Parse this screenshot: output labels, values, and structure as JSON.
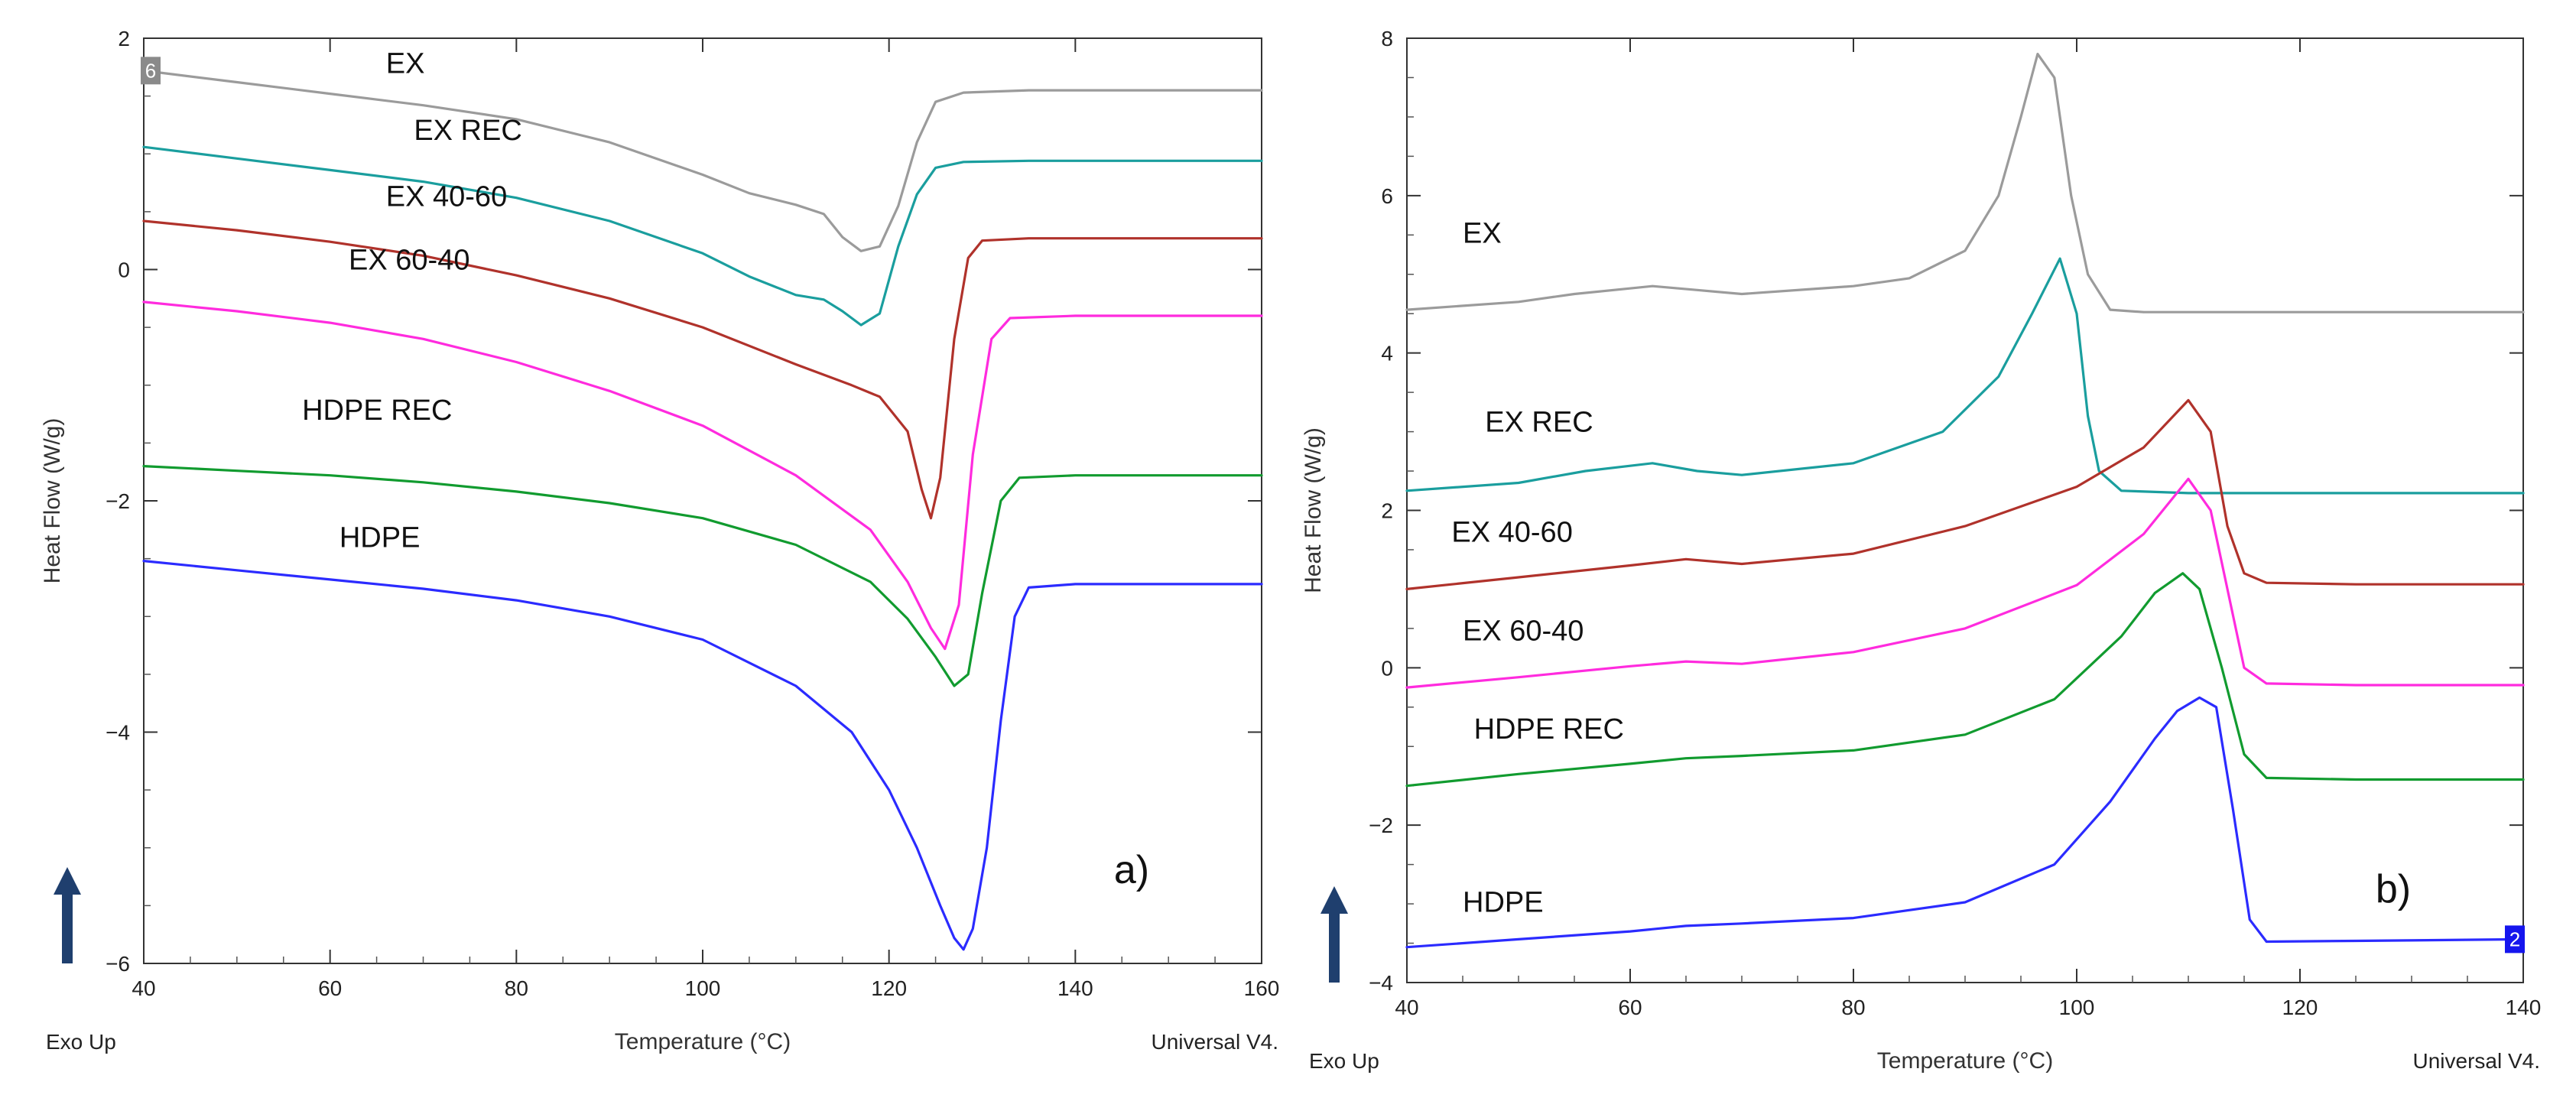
{
  "chart_data": [
    {
      "type": "line",
      "panel_label": "a)",
      "xlabel": "Temperature (°C)",
      "ylabel": "Heat Flow (W/g)",
      "xlim": [
        40,
        160
      ],
      "ylim": [
        -6,
        2
      ],
      "xticks": [
        40,
        60,
        80,
        100,
        120,
        140,
        160
      ],
      "yticks": [
        -6,
        -4,
        -2,
        0,
        2
      ],
      "corner_left": "Exo Up",
      "corner_right": "Universal V4.",
      "badge": {
        "text": "6",
        "color": "#8a8a8a",
        "x": 40,
        "y": 1.72
      },
      "grid": false,
      "series": [
        {
          "name": "EX",
          "color": "#9b9b9b",
          "label_at": [
            66,
            1.7
          ],
          "points": [
            [
              40,
              1.72
            ],
            [
              50,
              1.62
            ],
            [
              60,
              1.52
            ],
            [
              70,
              1.42
            ],
            [
              80,
              1.3
            ],
            [
              90,
              1.1
            ],
            [
              100,
              0.82
            ],
            [
              105,
              0.66
            ],
            [
              110,
              0.56
            ],
            [
              113,
              0.48
            ],
            [
              115,
              0.28
            ],
            [
              117,
              0.16
            ],
            [
              119,
              0.2
            ],
            [
              121,
              0.55
            ],
            [
              123,
              1.1
            ],
            [
              125,
              1.45
            ],
            [
              128,
              1.53
            ],
            [
              135,
              1.55
            ],
            [
              160,
              1.55
            ]
          ]
        },
        {
          "name": "EX REC",
          "color": "#1a9e9e",
          "label_at": [
            69,
            1.12
          ],
          "points": [
            [
              40,
              1.06
            ],
            [
              50,
              0.96
            ],
            [
              60,
              0.86
            ],
            [
              70,
              0.76
            ],
            [
              80,
              0.62
            ],
            [
              90,
              0.42
            ],
            [
              100,
              0.14
            ],
            [
              105,
              -0.06
            ],
            [
              110,
              -0.22
            ],
            [
              113,
              -0.26
            ],
            [
              115,
              -0.36
            ],
            [
              117,
              -0.48
            ],
            [
              119,
              -0.38
            ],
            [
              121,
              0.2
            ],
            [
              123,
              0.65
            ],
            [
              125,
              0.88
            ],
            [
              128,
              0.93
            ],
            [
              135,
              0.94
            ],
            [
              160,
              0.94
            ]
          ]
        },
        {
          "name": "EX 40-60",
          "color": "#b0322b",
          "label_at": [
            66,
            0.55
          ],
          "points": [
            [
              40,
              0.42
            ],
            [
              50,
              0.34
            ],
            [
              60,
              0.24
            ],
            [
              70,
              0.12
            ],
            [
              80,
              -0.05
            ],
            [
              90,
              -0.25
            ],
            [
              100,
              -0.5
            ],
            [
              110,
              -0.82
            ],
            [
              116,
              -1.0
            ],
            [
              119,
              -1.1
            ],
            [
              122,
              -1.4
            ],
            [
              123.5,
              -1.9
            ],
            [
              124.5,
              -2.15
            ],
            [
              125.5,
              -1.8
            ],
            [
              127,
              -0.6
            ],
            [
              128.5,
              0.1
            ],
            [
              130,
              0.25
            ],
            [
              135,
              0.27
            ],
            [
              160,
              0.27
            ]
          ]
        },
        {
          "name": "EX 60-40",
          "color": "#ff2bde",
          "label_at": [
            62,
            0.0
          ],
          "points": [
            [
              40,
              -0.28
            ],
            [
              50,
              -0.36
            ],
            [
              60,
              -0.46
            ],
            [
              70,
              -0.6
            ],
            [
              80,
              -0.8
            ],
            [
              90,
              -1.05
            ],
            [
              100,
              -1.35
            ],
            [
              110,
              -1.78
            ],
            [
              118,
              -2.25
            ],
            [
              122,
              -2.7
            ],
            [
              124.5,
              -3.1
            ],
            [
              126,
              -3.28
            ],
            [
              127.5,
              -2.9
            ],
            [
              129,
              -1.6
            ],
            [
              131,
              -0.6
            ],
            [
              133,
              -0.42
            ],
            [
              140,
              -0.4
            ],
            [
              160,
              -0.4
            ]
          ]
        },
        {
          "name": "HDPE REC",
          "color": "#119b2f",
          "label_at": [
            57,
            -1.3
          ],
          "points": [
            [
              40,
              -1.7
            ],
            [
              50,
              -1.74
            ],
            [
              60,
              -1.78
            ],
            [
              70,
              -1.84
            ],
            [
              80,
              -1.92
            ],
            [
              90,
              -2.02
            ],
            [
              100,
              -2.15
            ],
            [
              110,
              -2.38
            ],
            [
              118,
              -2.7
            ],
            [
              122,
              -3.02
            ],
            [
              125,
              -3.35
            ],
            [
              127,
              -3.6
            ],
            [
              128.5,
              -3.5
            ],
            [
              130,
              -2.8
            ],
            [
              132,
              -2.0
            ],
            [
              134,
              -1.8
            ],
            [
              140,
              -1.78
            ],
            [
              160,
              -1.78
            ]
          ]
        },
        {
          "name": "HDPE",
          "color": "#2b2bff",
          "label_at": [
            61,
            -2.4
          ],
          "points": [
            [
              40,
              -2.52
            ],
            [
              50,
              -2.6
            ],
            [
              60,
              -2.68
            ],
            [
              70,
              -2.76
            ],
            [
              80,
              -2.86
            ],
            [
              90,
              -3.0
            ],
            [
              100,
              -3.2
            ],
            [
              110,
              -3.6
            ],
            [
              116,
              -4.0
            ],
            [
              120,
              -4.5
            ],
            [
              123,
              -5.0
            ],
            [
              125.5,
              -5.5
            ],
            [
              127,
              -5.78
            ],
            [
              128,
              -5.88
            ],
            [
              129,
              -5.7
            ],
            [
              130.5,
              -5.0
            ],
            [
              132,
              -3.9
            ],
            [
              133.5,
              -3.0
            ],
            [
              135,
              -2.75
            ],
            [
              140,
              -2.72
            ],
            [
              160,
              -2.72
            ]
          ]
        }
      ]
    },
    {
      "type": "line",
      "panel_label": "b)",
      "xlabel": "Temperature (°C)",
      "ylabel": "Heat Flow (W/g)",
      "xlim": [
        40,
        140
      ],
      "ylim": [
        -4,
        8
      ],
      "xticks": [
        40,
        60,
        80,
        100,
        120,
        140
      ],
      "yticks": [
        -4,
        -2,
        0,
        2,
        4,
        6,
        8
      ],
      "corner_left": "Exo Up",
      "corner_right": "Universal V4.",
      "badge": {
        "text": "2",
        "color": "#1515ee",
        "x": 140,
        "y": -3.45
      },
      "grid": false,
      "series": [
        {
          "name": "EX",
          "color": "#9b9b9b",
          "label_at": [
            45,
            5.4
          ],
          "points": [
            [
              40,
              4.55
            ],
            [
              50,
              4.65
            ],
            [
              55,
              4.75
            ],
            [
              62,
              4.85
            ],
            [
              66,
              4.8
            ],
            [
              70,
              4.75
            ],
            [
              80,
              4.85
            ],
            [
              85,
              4.95
            ],
            [
              90,
              5.3
            ],
            [
              93,
              6.0
            ],
            [
              95,
              7.0
            ],
            [
              96.5,
              7.8
            ],
            [
              98,
              7.5
            ],
            [
              99.5,
              6.0
            ],
            [
              101,
              5.0
            ],
            [
              103,
              4.55
            ],
            [
              106,
              4.52
            ],
            [
              140,
              4.52
            ]
          ]
        },
        {
          "name": "EX REC",
          "color": "#1a9e9e",
          "label_at": [
            47,
            3.0
          ],
          "points": [
            [
              40,
              2.25
            ],
            [
              50,
              2.35
            ],
            [
              56,
              2.5
            ],
            [
              62,
              2.6
            ],
            [
              66,
              2.5
            ],
            [
              70,
              2.45
            ],
            [
              80,
              2.6
            ],
            [
              88,
              3.0
            ],
            [
              93,
              3.7
            ],
            [
              96,
              4.5
            ],
            [
              98.5,
              5.2
            ],
            [
              100,
              4.5
            ],
            [
              101,
              3.2
            ],
            [
              102,
              2.5
            ],
            [
              104,
              2.25
            ],
            [
              110,
              2.22
            ],
            [
              140,
              2.22
            ]
          ]
        },
        {
          "name": "EX 40-60",
          "color": "#b0322b",
          "label_at": [
            44,
            1.6
          ],
          "points": [
            [
              40,
              1.0
            ],
            [
              50,
              1.15
            ],
            [
              60,
              1.3
            ],
            [
              65,
              1.38
            ],
            [
              70,
              1.32
            ],
            [
              80,
              1.45
            ],
            [
              90,
              1.8
            ],
            [
              100,
              2.3
            ],
            [
              106,
              2.8
            ],
            [
              110,
              3.4
            ],
            [
              112,
              3.0
            ],
            [
              113.5,
              1.8
            ],
            [
              115,
              1.2
            ],
            [
              117,
              1.08
            ],
            [
              125,
              1.06
            ],
            [
              140,
              1.06
            ]
          ]
        },
        {
          "name": "EX 60-40",
          "color": "#ff2bde",
          "label_at": [
            45,
            0.35
          ],
          "points": [
            [
              40,
              -0.25
            ],
            [
              50,
              -0.12
            ],
            [
              60,
              0.02
            ],
            [
              65,
              0.08
            ],
            [
              70,
              0.05
            ],
            [
              80,
              0.2
            ],
            [
              90,
              0.5
            ],
            [
              100,
              1.05
            ],
            [
              106,
              1.7
            ],
            [
              110,
              2.4
            ],
            [
              112,
              2.0
            ],
            [
              113.5,
              1.0
            ],
            [
              115,
              0.0
            ],
            [
              117,
              -0.2
            ],
            [
              125,
              -0.22
            ],
            [
              140,
              -0.22
            ]
          ]
        },
        {
          "name": "HDPE REC",
          "color": "#119b2f",
          "label_at": [
            46,
            -0.9
          ],
          "points": [
            [
              40,
              -1.5
            ],
            [
              50,
              -1.35
            ],
            [
              60,
              -1.22
            ],
            [
              65,
              -1.15
            ],
            [
              70,
              -1.12
            ],
            [
              80,
              -1.05
            ],
            [
              90,
              -0.85
            ],
            [
              98,
              -0.4
            ],
            [
              104,
              0.4
            ],
            [
              107,
              0.95
            ],
            [
              109.5,
              1.2
            ],
            [
              111,
              1.0
            ],
            [
              113,
              0.0
            ],
            [
              115,
              -1.1
            ],
            [
              117,
              -1.4
            ],
            [
              125,
              -1.42
            ],
            [
              140,
              -1.42
            ]
          ]
        },
        {
          "name": "HDPE",
          "color": "#2b2bff",
          "label_at": [
            45,
            -3.1
          ],
          "points": [
            [
              40,
              -3.55
            ],
            [
              50,
              -3.45
            ],
            [
              60,
              -3.35
            ],
            [
              65,
              -3.28
            ],
            [
              70,
              -3.25
            ],
            [
              80,
              -3.18
            ],
            [
              90,
              -2.98
            ],
            [
              98,
              -2.5
            ],
            [
              103,
              -1.7
            ],
            [
              107,
              -0.9
            ],
            [
              109,
              -0.55
            ],
            [
              111,
              -0.38
            ],
            [
              112.5,
              -0.5
            ],
            [
              114,
              -1.8
            ],
            [
              115.5,
              -3.2
            ],
            [
              117,
              -3.48
            ],
            [
              125,
              -3.47
            ],
            [
              140,
              -3.45
            ]
          ]
        }
      ]
    }
  ]
}
